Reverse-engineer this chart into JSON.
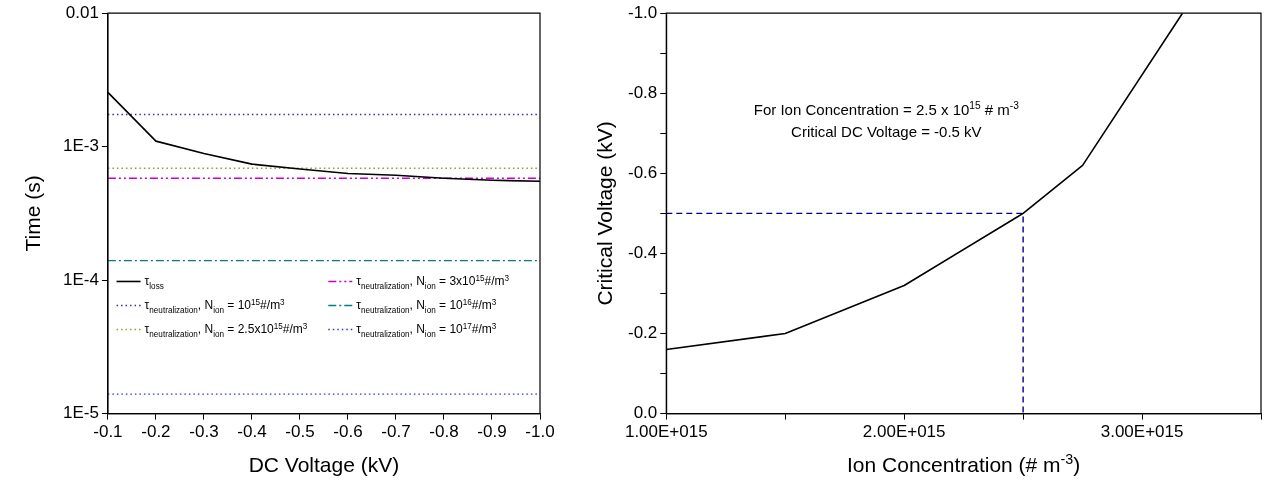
{
  "chart_data": [
    {
      "type": "line",
      "xlabel": "DC Voltage (kV)",
      "ylabel": "Time (s)",
      "log": "y",
      "grid": false,
      "legend": "bottom left",
      "xlim": [
        -0.1,
        -1.0
      ],
      "xticks": [
        -0.1,
        -0.2,
        -0.3,
        -0.4,
        -0.5,
        -0.6,
        -0.7,
        -0.8,
        -0.9,
        {
          "value": -1.0,
          "label": "-1.0"
        }
      ],
      "ylim": [
        1e-05,
        0.01
      ],
      "yticks": [
        {
          "value": 1e-05,
          "label": "1E-5"
        },
        {
          "value": 0.0001,
          "label": "1E-4"
        },
        {
          "value": 0.001,
          "label": "1E-3"
        },
        0.01
      ],
      "series": [
        {
          "name": "τ$_{loss}$",
          "color": "#000000",
          "line_style": "solid",
          "x": [
            -0.1,
            -0.2,
            -0.3,
            -0.4,
            -0.5,
            -0.6,
            -0.7,
            -0.8,
            -0.9,
            -1.0
          ],
          "values": [
            0.00255,
            0.0011,
            0.00089,
            0.00074,
            0.00068,
            0.00063,
            0.00061,
            0.00058,
            0.00056,
            0.00055
          ]
        },
        {
          "name": "τ$_{neutralization}$, N$_{ion}$ = 10$^{15}$#/m$^{3}$",
          "color": "#333399",
          "line_style": "dotted",
          "x": [
            -0.1,
            -1.0
          ],
          "values": [
            0.00174,
            0.00174
          ]
        },
        {
          "name": "τ$_{neutralization}$, N$_{ion}$ = 2.5x10$^{15}$#/m$^{3}$",
          "color": "#999933",
          "line_style": "dotted",
          "x": [
            -0.1,
            -1.0
          ],
          "values": [
            0.00069,
            0.00069
          ]
        },
        {
          "name": "τ$_{neutralization}$, N$_{ion}$ = 3x10$^{15}$#/m$^{3}$",
          "color": "#cc00cc",
          "line_style": "dashdotdot",
          "x": [
            -0.1,
            -1.0
          ],
          "values": [
            0.00058,
            0.00058
          ]
        },
        {
          "name": "τ$_{neutralization}$, N$_{ion}$ = 10$^{16}$#/m$^{3}$",
          "color": "#008080",
          "line_style": "dashdot",
          "x": [
            -0.1,
            -1.0
          ],
          "values": [
            0.00014,
            0.00014
          ]
        },
        {
          "name": "τ$_{neutralization}$, N$_{ion}$ = 10$^{17}$#/m$^{3}$",
          "color": "#3333cc",
          "line_style": "dotted",
          "x": [
            -0.1,
            -1.0
          ],
          "values": [
            1.4e-05,
            1.4e-05
          ]
        }
      ]
    },
    {
      "type": "line",
      "xlabel": "Ion Concentration (# m$^{-3}$)",
      "ylabel": "Critical Voltage (kV)",
      "grid": false,
      "annotations": [
        "For Ion Concentration = 2.5 x 10$^{15}$ # m$^{-3}$",
        "Critical DC Voltage = -0.5 kV"
      ],
      "xlim": [
        1000000000000000.0,
        3500000000000000.0
      ],
      "xticks": [
        {
          "value": 1000000000000000.0,
          "label": "1.00E+015"
        },
        {
          "value": 1500000000000000.0,
          "label": null
        },
        {
          "value": 2000000000000000.0,
          "label": "2.00E+015"
        },
        {
          "value": 2500000000000000.0,
          "label": null
        },
        {
          "value": 3000000000000000.0,
          "label": "3.00E+015"
        },
        {
          "value": 3500000000000000.0,
          "label": null
        }
      ],
      "ylim": [
        0,
        -1.0
      ],
      "yticks": [
        {
          "value": 0,
          "label": "0.0"
        },
        {
          "value": -0.1,
          "label": null
        },
        -0.2,
        {
          "value": -0.3,
          "label": null
        },
        -0.4,
        {
          "value": -0.5,
          "label": null
        },
        -0.6,
        {
          "value": -0.7,
          "label": null
        },
        -0.8,
        {
          "value": -0.9,
          "label": null
        },
        {
          "value": -1.0,
          "label": "-1.0"
        }
      ],
      "series": [
        {
          "color": "#000000",
          "line_style": "solid",
          "x": [
            1000000000000000.0,
            1500000000000000.0,
            1750000000000000.0,
            2000000000000000.0,
            2500000000000000.0,
            2750000000000000.0,
            3170000000000000.0
          ],
          "values": [
            -0.16,
            -0.2,
            -0.26,
            -0.32,
            -0.5,
            -0.62,
            -1.0
          ]
        },
        {
          "color": "#00008b",
          "line_style": "dashed",
          "x": [
            1000000000000000.0,
            2500000000000000.0,
            2500000000000000.0
          ],
          "values": [
            -0.5,
            -0.5,
            0
          ]
        }
      ]
    }
  ]
}
